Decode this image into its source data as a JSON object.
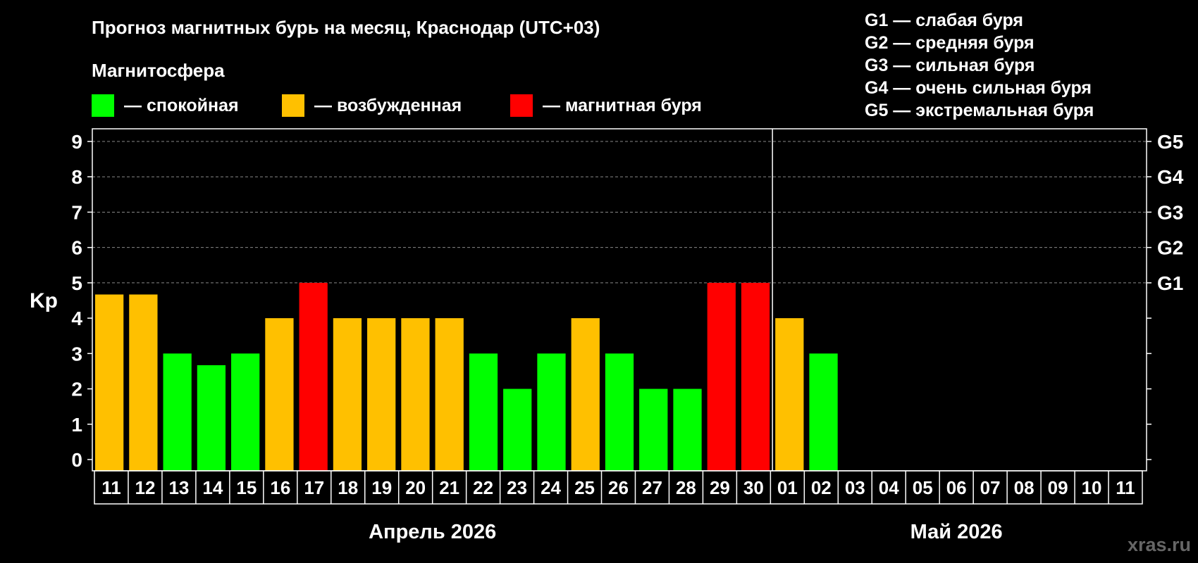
{
  "header": {
    "title": "Прогноз магнитных бурь на месяц, Краснодар (UTC+03)",
    "legend_title": "Магнитосфера",
    "legend": [
      {
        "label": "— спокойная",
        "color": "#00ff00"
      },
      {
        "label": "— возбужденная",
        "color": "#ffc000"
      },
      {
        "label": "— магнитная буря",
        "color": "#ff0000"
      }
    ],
    "g_scale": [
      "G1 — слабая буря",
      "G2 — средняя буря",
      "G3 — сильная буря",
      "G4 — очень сильная буря",
      "G5 — экстремальная буря"
    ]
  },
  "watermark": "xras.ru",
  "chart_data": {
    "type": "bar",
    "ylabel": "Kp",
    "ylim": [
      0,
      9
    ],
    "y_ticks": [
      "0",
      "1",
      "2",
      "3",
      "4",
      "5",
      "6",
      "7",
      "8",
      "9"
    ],
    "right_ticks": [
      {
        "value": 5,
        "label": "G1"
      },
      {
        "value": 6,
        "label": "G2"
      },
      {
        "value": 7,
        "label": "G3"
      },
      {
        "value": 8,
        "label": "G4"
      },
      {
        "value": 9,
        "label": "G5"
      }
    ],
    "grid": "dashed horizontal at 5-9",
    "categories": [
      "11",
      "12",
      "13",
      "14",
      "15",
      "16",
      "17",
      "18",
      "19",
      "20",
      "21",
      "22",
      "23",
      "24",
      "25",
      "26",
      "27",
      "28",
      "29",
      "30",
      "01",
      "02",
      "03",
      "04",
      "05",
      "06",
      "07",
      "08",
      "09",
      "10",
      "11"
    ],
    "values": [
      4.67,
      4.67,
      3,
      2.67,
      3,
      4,
      5,
      4,
      4,
      4,
      4,
      3,
      2,
      3,
      4,
      3,
      2,
      2,
      5,
      5,
      4,
      3,
      null,
      null,
      null,
      null,
      null,
      null,
      null,
      null,
      null
    ],
    "colors": [
      "#ffc000",
      "#ffc000",
      "#00ff00",
      "#00ff00",
      "#00ff00",
      "#ffc000",
      "#ff0000",
      "#ffc000",
      "#ffc000",
      "#ffc000",
      "#ffc000",
      "#00ff00",
      "#00ff00",
      "#00ff00",
      "#ffc000",
      "#00ff00",
      "#00ff00",
      "#00ff00",
      "#ff0000",
      "#ff0000",
      "#ffc000",
      "#00ff00",
      null,
      null,
      null,
      null,
      null,
      null,
      null,
      null,
      null
    ],
    "months": [
      {
        "label": "Апрель 2026",
        "from": 0,
        "to": 19
      },
      {
        "label": "Май 2026",
        "from": 20,
        "to": 30
      }
    ]
  }
}
